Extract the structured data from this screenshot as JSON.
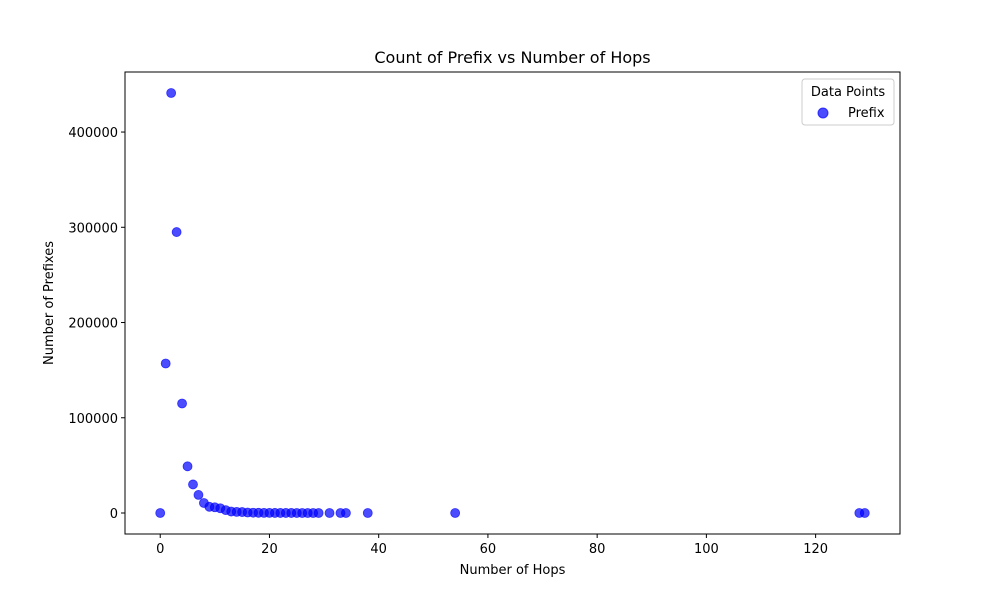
{
  "chart_data": {
    "type": "scatter",
    "title": "Count of Prefix vs Number of Hops",
    "xlabel": "Number of Hops",
    "ylabel": "Number of Prefixes",
    "xlim": [
      -6.45,
      135.45
    ],
    "ylim": [
      -22050,
      463050
    ],
    "xticks": [
      0,
      20,
      40,
      60,
      80,
      100,
      120
    ],
    "yticks": [
      0,
      100000,
      200000,
      300000,
      400000
    ],
    "grid": false,
    "legend": {
      "title": "Data Points",
      "placement": "top-right",
      "entries": [
        "Prefix"
      ]
    },
    "series": [
      {
        "name": "Prefix",
        "color": "#0000ff",
        "alpha": 0.7,
        "points": [
          {
            "x": 0,
            "y": 10
          },
          {
            "x": 1,
            "y": 157000
          },
          {
            "x": 2,
            "y": 441000
          },
          {
            "x": 3,
            "y": 295000
          },
          {
            "x": 4,
            "y": 115000
          },
          {
            "x": 5,
            "y": 49000
          },
          {
            "x": 6,
            "y": 30000
          },
          {
            "x": 7,
            "y": 19000
          },
          {
            "x": 8,
            "y": 10500
          },
          {
            "x": 9,
            "y": 6500
          },
          {
            "x": 10,
            "y": 6000
          },
          {
            "x": 11,
            "y": 5000
          },
          {
            "x": 12,
            "y": 3000
          },
          {
            "x": 13,
            "y": 1500
          },
          {
            "x": 14,
            "y": 1200
          },
          {
            "x": 15,
            "y": 1000
          },
          {
            "x": 16,
            "y": 500
          },
          {
            "x": 17,
            "y": 300
          },
          {
            "x": 18,
            "y": 200
          },
          {
            "x": 19,
            "y": 150
          },
          {
            "x": 20,
            "y": 100
          },
          {
            "x": 21,
            "y": 80
          },
          {
            "x": 22,
            "y": 60
          },
          {
            "x": 23,
            "y": 50
          },
          {
            "x": 24,
            "y": 40
          },
          {
            "x": 25,
            "y": 30
          },
          {
            "x": 26,
            "y": 25
          },
          {
            "x": 27,
            "y": 20
          },
          {
            "x": 28,
            "y": 15
          },
          {
            "x": 29,
            "y": 10
          },
          {
            "x": 31,
            "y": 8
          },
          {
            "x": 33,
            "y": 5
          },
          {
            "x": 34,
            "y": 4
          },
          {
            "x": 38,
            "y": 3
          },
          {
            "x": 54,
            "y": 2
          },
          {
            "x": 128,
            "y": 1
          },
          {
            "x": 129,
            "y": 1
          }
        ]
      }
    ]
  }
}
